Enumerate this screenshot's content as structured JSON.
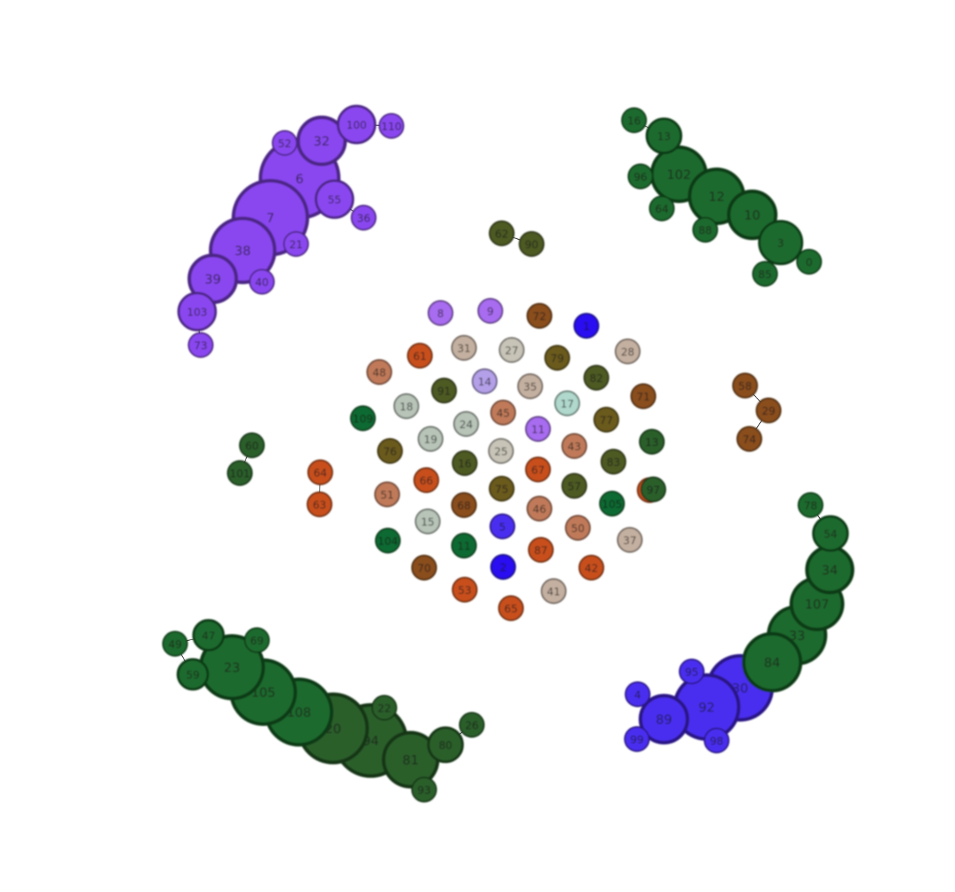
{
  "colors": {
    "purple": "#8a46f0",
    "violet": "#a86cf0",
    "blue": "#4a2ef0",
    "pureblue": "#2a10f0",
    "lavender": "#b4a0e8",
    "green": "#1e6a2e",
    "darkgreen": "#2a5e2a",
    "bright_green": "#106a30",
    "olive": "#4e5a22",
    "olive_brown": "#6a5a1e",
    "brown": "#8a4e1e",
    "orange": "#c8501e",
    "salmon": "#c07a5a",
    "tan": "#c4b0a0",
    "sage": "#b8c4b8",
    "mint": "#b0d8cc",
    "stone": "#c8c4b8"
  },
  "nodes": [
    {
      "id": "100",
      "c": "purple"
    },
    {
      "id": "110",
      "c": "purple"
    },
    {
      "id": "32",
      "c": "purple"
    },
    {
      "id": "52",
      "c": "purple"
    },
    {
      "id": "6",
      "c": "purple"
    },
    {
      "id": "55",
      "c": "purple"
    },
    {
      "id": "36",
      "c": "purple"
    },
    {
      "id": "7",
      "c": "purple"
    },
    {
      "id": "21",
      "c": "purple"
    },
    {
      "id": "38",
      "c": "purple"
    },
    {
      "id": "39",
      "c": "purple"
    },
    {
      "id": "40",
      "c": "purple"
    },
    {
      "id": "103",
      "c": "purple"
    },
    {
      "id": "73",
      "c": "purple"
    },
    {
      "id": "16",
      "c": "green"
    },
    {
      "id": "13",
      "c": "green"
    },
    {
      "id": "102",
      "c": "green"
    },
    {
      "id": "96",
      "c": "green"
    },
    {
      "id": "12",
      "c": "green"
    },
    {
      "id": "64",
      "c": "green"
    },
    {
      "id": "10",
      "c": "green"
    },
    {
      "id": "88",
      "c": "green"
    },
    {
      "id": "3",
      "c": "green"
    },
    {
      "id": "0",
      "c": "green"
    },
    {
      "id": "85",
      "c": "green"
    },
    {
      "id": "62",
      "c": "olive"
    },
    {
      "id": "90",
      "c": "olive"
    },
    {
      "id": "58",
      "c": "brown"
    },
    {
      "id": "29",
      "c": "brown"
    },
    {
      "id": "74",
      "c": "brown"
    },
    {
      "id": "60",
      "c": "darkgreen"
    },
    {
      "id": "101",
      "c": "darkgreen"
    },
    {
      "id": "64",
      "c": "orange",
      "key": "64b"
    },
    {
      "id": "63",
      "c": "orange"
    },
    {
      "id": "78",
      "c": "green"
    },
    {
      "id": "54",
      "c": "green"
    },
    {
      "id": "34",
      "c": "green"
    },
    {
      "id": "107",
      "c": "green"
    },
    {
      "id": "33",
      "c": "green"
    },
    {
      "id": "84",
      "c": "green"
    },
    {
      "id": "95",
      "c": "blue"
    },
    {
      "id": "30",
      "c": "blue"
    },
    {
      "id": "4",
      "c": "blue"
    },
    {
      "id": "92",
      "c": "blue"
    },
    {
      "id": "89",
      "c": "blue"
    },
    {
      "id": "99",
      "c": "blue"
    },
    {
      "id": "98",
      "c": "blue"
    },
    {
      "id": "47",
      "c": "green"
    },
    {
      "id": "69",
      "c": "green"
    },
    {
      "id": "49",
      "c": "green"
    },
    {
      "id": "23",
      "c": "green"
    },
    {
      "id": "59",
      "c": "green"
    },
    {
      "id": "105",
      "c": "green"
    },
    {
      "id": "108",
      "c": "green"
    },
    {
      "id": "20",
      "c": "darkgreen"
    },
    {
      "id": "22",
      "c": "darkgreen"
    },
    {
      "id": "94",
      "c": "darkgreen"
    },
    {
      "id": "26",
      "c": "darkgreen"
    },
    {
      "id": "80",
      "c": "darkgreen"
    },
    {
      "id": "81",
      "c": "darkgreen"
    },
    {
      "id": "93",
      "c": "darkgreen"
    },
    {
      "id": "8",
      "c": "violet"
    },
    {
      "id": "9",
      "c": "violet"
    },
    {
      "id": "72",
      "c": "brown"
    },
    {
      "id": "1",
      "c": "pureblue"
    },
    {
      "id": "61",
      "c": "orange"
    },
    {
      "id": "31",
      "c": "tan"
    },
    {
      "id": "27",
      "c": "stone"
    },
    {
      "id": "79",
      "c": "olive_brown"
    },
    {
      "id": "28",
      "c": "tan"
    },
    {
      "id": "48",
      "c": "salmon"
    },
    {
      "id": "14",
      "c": "lavender"
    },
    {
      "id": "91",
      "c": "olive"
    },
    {
      "id": "35",
      "c": "tan"
    },
    {
      "id": "82",
      "c": "olive"
    },
    {
      "id": "71",
      "c": "brown"
    },
    {
      "id": "18",
      "c": "sage"
    },
    {
      "id": "17",
      "c": "mint"
    },
    {
      "id": "109",
      "c": "bright_green"
    },
    {
      "id": "24",
      "c": "sage"
    },
    {
      "id": "45",
      "c": "salmon"
    },
    {
      "id": "77",
      "c": "olive_brown"
    },
    {
      "id": "19",
      "c": "sage"
    },
    {
      "id": "11",
      "c": "violet"
    },
    {
      "id": "43",
      "c": "salmon"
    },
    {
      "id": "76",
      "c": "olive_brown"
    },
    {
      "id": "25",
      "c": "stone"
    },
    {
      "id": "83",
      "c": "olive"
    },
    {
      "id": "16",
      "c": "olive",
      "key": "16b"
    },
    {
      "id": "67",
      "c": "orange"
    },
    {
      "id": "13",
      "c": "darkgreen",
      "key": "13b"
    },
    {
      "id": "54",
      "c": "orange",
      "key": "54b"
    },
    {
      "id": "66",
      "c": "orange"
    },
    {
      "id": "51",
      "c": "salmon"
    },
    {
      "id": "75",
      "c": "olive_brown"
    },
    {
      "id": "57",
      "c": "olive"
    },
    {
      "id": "97",
      "c": "darkgreen"
    },
    {
      "id": "68",
      "c": "brown"
    },
    {
      "id": "46",
      "c": "salmon"
    },
    {
      "id": "105",
      "c": "bright_green",
      "key": "105b"
    },
    {
      "id": "15",
      "c": "sage"
    },
    {
      "id": "5",
      "c": "blue"
    },
    {
      "id": "50",
      "c": "salmon"
    },
    {
      "id": "104",
      "c": "bright_green"
    },
    {
      "id": "11",
      "c": "bright_green",
      "key": "11b"
    },
    {
      "id": "37",
      "c": "tan"
    },
    {
      "id": "87",
      "c": "orange"
    },
    {
      "id": "70",
      "c": "brown"
    },
    {
      "id": "2",
      "c": "pureblue"
    },
    {
      "id": "42",
      "c": "orange"
    },
    {
      "id": "53",
      "c": "orange"
    },
    {
      "id": "41",
      "c": "tan"
    },
    {
      "id": "65",
      "c": "orange"
    }
  ]
}
